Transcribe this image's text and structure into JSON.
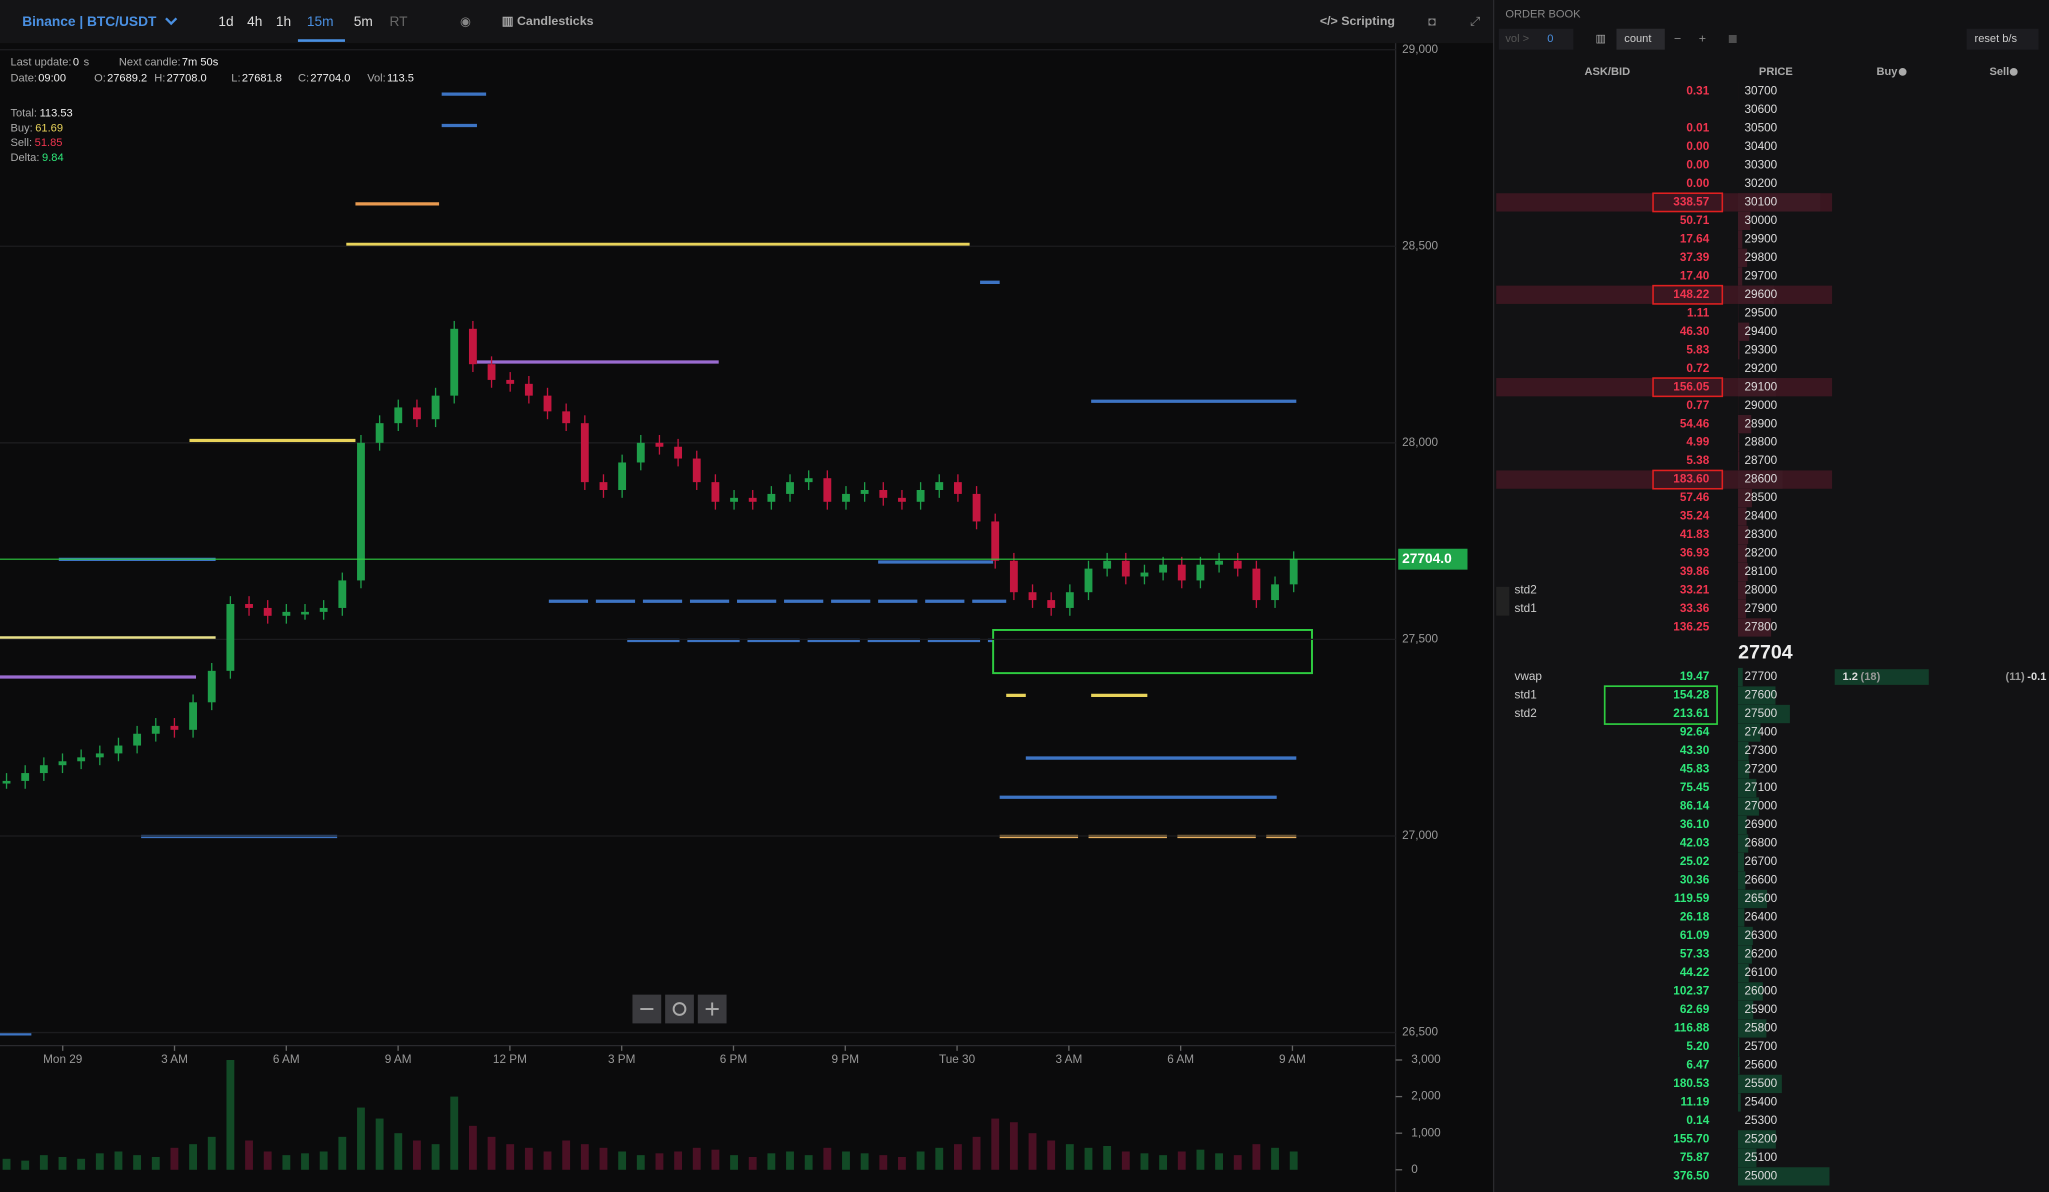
{
  "toolbar": {
    "symbol": "Binance | BTC/USDT",
    "timeframes": [
      "1d",
      "4h",
      "1h",
      "15m",
      "5m",
      "RT"
    ],
    "chart_type": "Candlesticks",
    "scripting": "Scripting"
  },
  "info": {
    "lines": [
      [
        {
          "label": "Last update:",
          "value": "0"
        },
        {
          "label": "s"
        },
        {
          "label": "Next candle:",
          "value": "7m 50s"
        }
      ],
      [
        {
          "label": "Date:",
          "value": "09:00"
        },
        {
          "label": "O:",
          "value": "27689.2"
        },
        {
          "label": "H:",
          "value": "27708.0"
        },
        {
          "label": "L:",
          "value": "27681.8"
        },
        {
          "label": "C:",
          "value": "27704.0"
        },
        {
          "label": "Vol:",
          "value": "113.5"
        }
      ]
    ],
    "stats": [
      {
        "label": "Total:",
        "value": "113.53"
      },
      {
        "label": "Buy:",
        "value": "61.69"
      },
      {
        "label": "Sell:",
        "value": "51.85"
      },
      {
        "label": "Delta:",
        "value": "9.84"
      }
    ]
  },
  "chart": {
    "type": "candlestick",
    "closes": [
      27140,
      27160,
      27180,
      27190,
      27200,
      27210,
      27230,
      27260,
      27280,
      27270,
      27340,
      27420,
      27590,
      27580,
      27560,
      27570,
      27570,
      27580,
      27650,
      28000,
      28050,
      28090,
      28060,
      28120,
      28290,
      28200,
      28160,
      28150,
      28120,
      28080,
      28050,
      27900,
      27880,
      27950,
      28000,
      27990,
      27960,
      27900,
      27850,
      27860,
      27850,
      27870,
      27900,
      27910,
      27850,
      27870,
      27880,
      27860,
      27850,
      27880,
      27900,
      27870,
      27800,
      27700,
      27620,
      27600,
      27580,
      27620,
      27680,
      27700,
      27660,
      27670,
      27690,
      27650,
      27690,
      27700,
      27680,
      27600,
      27640,
      27704
    ],
    "volumes": [
      300,
      250,
      400,
      350,
      300,
      450,
      500,
      400,
      350,
      600,
      700,
      900,
      3000,
      800,
      500,
      400,
      450,
      500,
      900,
      1700,
      1400,
      1000,
      800,
      700,
      2000,
      1200,
      900,
      700,
      600,
      500,
      800,
      700,
      600,
      500,
      400,
      450,
      500,
      600,
      550,
      400,
      350,
      450,
      500,
      400,
      600,
      500,
      450,
      400,
      350,
      500,
      600,
      700,
      900,
      1400,
      1300,
      1000,
      800,
      700,
      600,
      650,
      500,
      450,
      400,
      500,
      550,
      450,
      400,
      700,
      600,
      500
    ],
    "ylim": [
      26500,
      29000
    ],
    "yticks": [
      {
        "value": 29000,
        "label": "29,000"
      },
      {
        "value": 28500,
        "label": "28,500"
      },
      {
        "value": 28000,
        "label": "28,000"
      },
      {
        "value": 27500,
        "label": "27,500"
      },
      {
        "value": 27000,
        "label": "27,000"
      },
      {
        "value": 26500,
        "label": "26,500"
      }
    ],
    "y2lim": [
      0,
      3000
    ],
    "y2ticks": [
      {
        "value": 3000,
        "label": "3,000"
      },
      {
        "value": 2000,
        "label": "2,000"
      },
      {
        "value": 1000,
        "label": "1,000"
      },
      0
    ],
    "time_labels": [
      "Mon 29",
      "3 AM",
      "6 AM",
      "9 AM",
      "12 PM",
      "3 PM",
      "6 PM",
      "9 PM",
      "Tue 30",
      "3 AM",
      "6 AM",
      "9 AM"
    ],
    "last_price": {
      "value": 27704,
      "label": "27704.0"
    },
    "up_color": "#1f9e4a",
    "down_color": "#c4163f"
  },
  "order_book": {
    "title": "ORDER BOOK",
    "vol_label": "vol >",
    "vol_value": "0",
    "count": "count",
    "reset": "reset b/s",
    "columns": [
      "ASK/BID",
      "PRICE",
      "Buy",
      "Sell"
    ],
    "asks": [
      {
        "size": "0.31",
        "price": "30700"
      },
      {
        "price": "30600"
      },
      {
        "size": "0.01",
        "price": "30500"
      },
      {
        "size": "0.00",
        "price": "30400"
      },
      {
        "size": "0.00",
        "price": "30300"
      },
      {
        "size": "0.00",
        "price": "30200"
      },
      {
        "size": "338.57",
        "price": "30100",
        "boxed": true
      },
      {
        "size": "50.71",
        "price": "30000"
      },
      {
        "size": "17.64",
        "price": "29900"
      },
      {
        "size": "37.39",
        "price": "29800"
      },
      {
        "size": "17.40",
        "price": "29700"
      },
      {
        "size": "148.22",
        "price": "29600",
        "boxed": true
      },
      {
        "size": "1.11",
        "price": "29500"
      },
      {
        "size": "46.30",
        "price": "29400"
      },
      {
        "size": "5.83",
        "price": "29300"
      },
      {
        "size": "0.72",
        "price": "29200"
      },
      {
        "size": "156.05",
        "price": "29100",
        "boxed": true
      },
      {
        "size": "0.77",
        "price": "29000"
      },
      {
        "size": "54.46",
        "price": "28900"
      },
      {
        "size": "4.99",
        "price": "28800"
      },
      {
        "size": "5.38",
        "price": "28700"
      },
      {
        "size": "183.60",
        "price": "28600",
        "boxed": true
      },
      {
        "size": "57.46",
        "price": "28500"
      },
      {
        "size": "35.24",
        "price": "28400"
      },
      {
        "size": "41.83",
        "price": "28300"
      },
      {
        "size": "36.93",
        "price": "28200"
      },
      {
        "size": "39.86",
        "price": "28100"
      },
      {
        "size": "33.21",
        "price": "28000",
        "tag": "std2"
      },
      {
        "size": "33.36",
        "price": "27900",
        "tag": "std1"
      },
      {
        "size": "136.25",
        "price": "27800"
      }
    ],
    "mid": "27704",
    "bids": [
      {
        "size": "19.47",
        "price": "27700",
        "tag": "vwap",
        "buy": "1.2",
        "buy_count": "(18)",
        "sell_count": "(11)",
        "sell": "-0.1"
      },
      {
        "size": "154.28",
        "price": "27600",
        "tag": "std1"
      },
      {
        "size": "213.61",
        "price": "27500",
        "tag": "std2"
      },
      {
        "size": "92.64",
        "price": "27400"
      },
      {
        "size": "43.30",
        "price": "27300"
      },
      {
        "size": "45.83",
        "price": "27200"
      },
      {
        "size": "75.45",
        "price": "27100"
      },
      {
        "size": "86.14",
        "price": "27000"
      },
      {
        "size": "36.10",
        "price": "26900"
      },
      {
        "size": "42.03",
        "price": "26800"
      },
      {
        "size": "25.02",
        "price": "26700"
      },
      {
        "size": "30.36",
        "price": "26600"
      },
      {
        "size": "119.59",
        "price": "26500"
      },
      {
        "size": "26.18",
        "price": "26400"
      },
      {
        "size": "61.09",
        "price": "26300"
      },
      {
        "size": "57.33",
        "price": "26200"
      },
      {
        "size": "44.22",
        "price": "26100"
      },
      {
        "size": "102.37",
        "price": "26000"
      },
      {
        "size": "62.69",
        "price": "25900"
      },
      {
        "size": "116.88",
        "price": "25800"
      },
      {
        "size": "5.20",
        "price": "25700"
      },
      {
        "size": "6.47",
        "price": "25600"
      },
      {
        "size": "180.53",
        "price": "25500"
      },
      {
        "size": "11.19",
        "price": "25400"
      },
      {
        "size": "0.14",
        "price": "25300"
      },
      {
        "size": "155.70",
        "price": "25200"
      },
      {
        "size": "75.87",
        "price": "25100"
      },
      {
        "size": "376.50",
        "price": "25000"
      }
    ]
  }
}
